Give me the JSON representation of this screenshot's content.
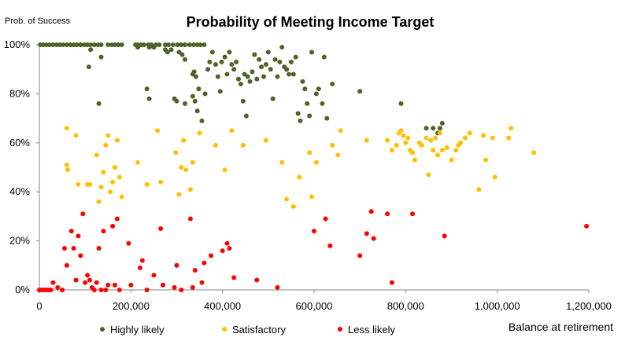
{
  "chart_data": {
    "type": "scatter",
    "title": "Probability of Meeting Income Target",
    "xlabel": "Balance at retirement",
    "ylabel": "Prob. of Success",
    "xlim": [
      0,
      1200000
    ],
    "ylim": [
      0,
      100
    ],
    "xticks": [
      0,
      200000,
      400000,
      600000,
      800000,
      1000000,
      1200000
    ],
    "xtick_labels": [
      "0",
      "200,000",
      "400,000",
      "600,000",
      "800,000",
      "1,000,000",
      "1,200,000"
    ],
    "yticks": [
      0,
      20,
      40,
      60,
      80,
      100
    ],
    "ytick_labels": [
      "0%",
      "20%",
      "40%",
      "60%",
      "80%",
      "100%"
    ],
    "grid": false,
    "legend_position": "bottom",
    "series": [
      {
        "name": "Highly likely",
        "color": "#4f6228",
        "points": [
          [
            2000,
            100
          ],
          [
            8000,
            100
          ],
          [
            15000,
            100
          ],
          [
            22000,
            100
          ],
          [
            30000,
            100
          ],
          [
            38000,
            100
          ],
          [
            45000,
            100
          ],
          [
            52000,
            100
          ],
          [
            60000,
            100
          ],
          [
            68000,
            100
          ],
          [
            75000,
            100
          ],
          [
            82000,
            100
          ],
          [
            90000,
            100
          ],
          [
            98000,
            100
          ],
          [
            105000,
            100
          ],
          [
            112000,
            100
          ],
          [
            120000,
            100
          ],
          [
            128000,
            100
          ],
          [
            135000,
            100
          ],
          [
            150000,
            100
          ],
          [
            158000,
            100
          ],
          [
            165000,
            100
          ],
          [
            172000,
            100
          ],
          [
            180000,
            100
          ],
          [
            210000,
            100
          ],
          [
            215000,
            100
          ],
          [
            222000,
            100
          ],
          [
            228000,
            100
          ],
          [
            238000,
            100
          ],
          [
            245000,
            100
          ],
          [
            255000,
            100
          ],
          [
            262000,
            100
          ],
          [
            275000,
            100
          ],
          [
            282000,
            100
          ],
          [
            292000,
            100
          ],
          [
            302000,
            100
          ],
          [
            310000,
            100
          ],
          [
            318000,
            100
          ],
          [
            328000,
            100
          ],
          [
            337000,
            100
          ],
          [
            345000,
            100
          ],
          [
            352000,
            100
          ],
          [
            360000,
            100
          ],
          [
            112000,
            98
          ],
          [
            108000,
            91
          ],
          [
            135000,
            95
          ],
          [
            130000,
            76
          ],
          [
            215000,
            99
          ],
          [
            222000,
            100
          ],
          [
            240000,
            99
          ],
          [
            250000,
            99
          ],
          [
            275000,
            98
          ],
          [
            280000,
            97
          ],
          [
            288000,
            98
          ],
          [
            305000,
            97
          ],
          [
            312000,
            96
          ],
          [
            318000,
            94
          ],
          [
            235000,
            82
          ],
          [
            240000,
            78
          ],
          [
            295000,
            78
          ],
          [
            300000,
            77
          ],
          [
            318000,
            76
          ],
          [
            335000,
            88
          ],
          [
            338000,
            89
          ],
          [
            342000,
            87
          ],
          [
            348000,
            82
          ],
          [
            355000,
            69
          ],
          [
            362000,
            80
          ],
          [
            368000,
            90
          ],
          [
            372000,
            93
          ],
          [
            378000,
            97
          ],
          [
            385000,
            92
          ],
          [
            390000,
            87
          ],
          [
            395000,
            81
          ],
          [
            335000,
            79
          ],
          [
            340000,
            77
          ],
          [
            345000,
            73
          ],
          [
            398000,
            93
          ],
          [
            405000,
            95
          ],
          [
            410000,
            88
          ],
          [
            415000,
            97
          ],
          [
            420000,
            92
          ],
          [
            425000,
            90
          ],
          [
            430000,
            93
          ],
          [
            435000,
            86
          ],
          [
            440000,
            84
          ],
          [
            445000,
            77
          ],
          [
            448000,
            88
          ],
          [
            452000,
            71
          ],
          [
            455000,
            87
          ],
          [
            460000,
            85
          ],
          [
            465000,
            89
          ],
          [
            470000,
            96
          ],
          [
            475000,
            86
          ],
          [
            480000,
            94
          ],
          [
            485000,
            91
          ],
          [
            490000,
            87
          ],
          [
            495000,
            92
          ],
          [
            500000,
            97
          ],
          [
            505000,
            90
          ],
          [
            510000,
            78
          ],
          [
            515000,
            94
          ],
          [
            520000,
            87
          ],
          [
            525000,
            93
          ],
          [
            530000,
            99
          ],
          [
            535000,
            91
          ],
          [
            540000,
            90
          ],
          [
            545000,
            88
          ],
          [
            550000,
            93
          ],
          [
            555000,
            88
          ],
          [
            560000,
            95
          ],
          [
            565000,
            72
          ],
          [
            570000,
            69
          ],
          [
            575000,
            85
          ],
          [
            580000,
            82
          ],
          [
            585000,
            76
          ],
          [
            590000,
            71
          ],
          [
            595000,
            97
          ],
          [
            605000,
            80
          ],
          [
            610000,
            82
          ],
          [
            618000,
            76
          ],
          [
            622000,
            95
          ],
          [
            628000,
            70
          ],
          [
            640000,
            84
          ],
          [
            700000,
            81
          ],
          [
            790000,
            76
          ],
          [
            845000,
            66
          ],
          [
            860000,
            66
          ],
          [
            870000,
            64
          ],
          [
            875000,
            66
          ],
          [
            880000,
            68
          ]
        ]
      },
      {
        "name": "Satisfactory",
        "color": "#ffc000",
        "points": [
          [
            60000,
            66
          ],
          [
            60000,
            51
          ],
          [
            62000,
            49
          ],
          [
            80000,
            63
          ],
          [
            85000,
            43
          ],
          [
            105000,
            43
          ],
          [
            110000,
            43
          ],
          [
            125000,
            55
          ],
          [
            130000,
            36
          ],
          [
            135000,
            42
          ],
          [
            140000,
            48
          ],
          [
            145000,
            59
          ],
          [
            150000,
            63
          ],
          [
            155000,
            40
          ],
          [
            160000,
            44
          ],
          [
            165000,
            50
          ],
          [
            170000,
            61
          ],
          [
            175000,
            46
          ],
          [
            180000,
            38
          ],
          [
            215000,
            52
          ],
          [
            235000,
            43
          ],
          [
            258000,
            65
          ],
          [
            265000,
            44
          ],
          [
            298000,
            56
          ],
          [
            305000,
            39
          ],
          [
            310000,
            50
          ],
          [
            315000,
            61
          ],
          [
            320000,
            49
          ],
          [
            330000,
            41
          ],
          [
            335000,
            52
          ],
          [
            350000,
            64
          ],
          [
            385000,
            59
          ],
          [
            405000,
            49
          ],
          [
            420000,
            65
          ],
          [
            445000,
            59
          ],
          [
            495000,
            61
          ],
          [
            530000,
            52
          ],
          [
            540000,
            37
          ],
          [
            555000,
            34
          ],
          [
            568000,
            46
          ],
          [
            590000,
            56
          ],
          [
            595000,
            38
          ],
          [
            605000,
            52
          ],
          [
            640000,
            59
          ],
          [
            658000,
            65
          ],
          [
            652000,
            55
          ],
          [
            715000,
            61
          ],
          [
            760000,
            61
          ],
          [
            770000,
            57
          ],
          [
            780000,
            59
          ],
          [
            785000,
            64
          ],
          [
            790000,
            65
          ],
          [
            795000,
            63
          ],
          [
            800000,
            60
          ],
          [
            805000,
            62
          ],
          [
            810000,
            57
          ],
          [
            815000,
            56
          ],
          [
            820000,
            53
          ],
          [
            830000,
            60
          ],
          [
            835000,
            59
          ],
          [
            845000,
            62
          ],
          [
            850000,
            47
          ],
          [
            855000,
            61
          ],
          [
            860000,
            57
          ],
          [
            865000,
            62
          ],
          [
            870000,
            55
          ],
          [
            875000,
            64
          ],
          [
            880000,
            57
          ],
          [
            890000,
            58
          ],
          [
            900000,
            53
          ],
          [
            910000,
            57
          ],
          [
            915000,
            59
          ],
          [
            920000,
            60
          ],
          [
            930000,
            62
          ],
          [
            940000,
            64
          ],
          [
            960000,
            41
          ],
          [
            970000,
            63
          ],
          [
            975000,
            53
          ],
          [
            990000,
            62
          ],
          [
            995000,
            46
          ],
          [
            1025000,
            62
          ],
          [
            1030000,
            66
          ],
          [
            1080000,
            56
          ]
        ]
      },
      {
        "name": "Less likely",
        "color": "#ff0000",
        "points": [
          [
            0,
            0
          ],
          [
            5000,
            0
          ],
          [
            10000,
            0
          ],
          [
            15000,
            0
          ],
          [
            20000,
            0
          ],
          [
            25000,
            0
          ],
          [
            30000,
            3
          ],
          [
            40000,
            1
          ],
          [
            50000,
            0
          ],
          [
            55000,
            17
          ],
          [
            60000,
            10
          ],
          [
            70000,
            24
          ],
          [
            75000,
            17
          ],
          [
            80000,
            4
          ],
          [
            85000,
            22
          ],
          [
            90000,
            14
          ],
          [
            95000,
            31
          ],
          [
            100000,
            3
          ],
          [
            105000,
            6
          ],
          [
            110000,
            4
          ],
          [
            115000,
            1
          ],
          [
            120000,
            0
          ],
          [
            125000,
            3
          ],
          [
            130000,
            17
          ],
          [
            135000,
            0
          ],
          [
            140000,
            24
          ],
          [
            145000,
            0
          ],
          [
            150000,
            2
          ],
          [
            160000,
            26
          ],
          [
            165000,
            2
          ],
          [
            170000,
            29
          ],
          [
            175000,
            0
          ],
          [
            195000,
            19
          ],
          [
            200000,
            2
          ],
          [
            220000,
            9
          ],
          [
            225000,
            12
          ],
          [
            235000,
            0
          ],
          [
            250000,
            6
          ],
          [
            265000,
            25
          ],
          [
            270000,
            2
          ],
          [
            295000,
            1
          ],
          [
            300000,
            10
          ],
          [
            310000,
            0
          ],
          [
            330000,
            29
          ],
          [
            335000,
            1
          ],
          [
            340000,
            8
          ],
          [
            355000,
            3
          ],
          [
            360000,
            11
          ],
          [
            375000,
            14
          ],
          [
            400000,
            16
          ],
          [
            410000,
            19
          ],
          [
            415000,
            17
          ],
          [
            425000,
            5
          ],
          [
            475000,
            4
          ],
          [
            520000,
            1
          ],
          [
            600000,
            24
          ],
          [
            625000,
            29
          ],
          [
            635000,
            18
          ],
          [
            700000,
            14
          ],
          [
            715000,
            23
          ],
          [
            725000,
            32
          ],
          [
            730000,
            21
          ],
          [
            760000,
            31
          ],
          [
            770000,
            3
          ],
          [
            815000,
            31
          ],
          [
            885000,
            22
          ],
          [
            1195000,
            26
          ]
        ]
      }
    ]
  }
}
